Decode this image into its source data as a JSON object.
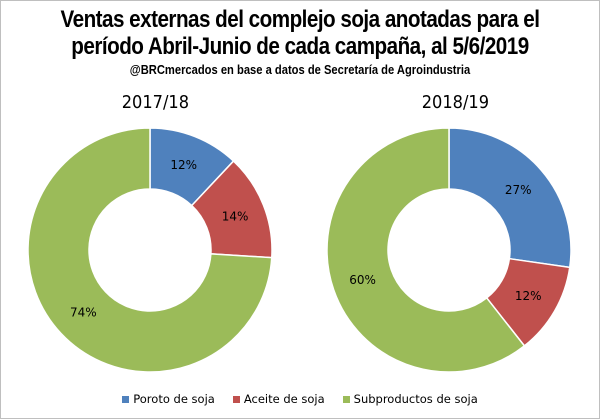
{
  "chart_data": [
    {
      "type": "pie",
      "subtype": "donut",
      "title": "2017/18",
      "categories": [
        "Poroto de soja",
        "Aceite de soja",
        "Subproductos de soja"
      ],
      "values": [
        12,
        14,
        74
      ],
      "labels": [
        "12%",
        "14%",
        "74%"
      ]
    },
    {
      "type": "pie",
      "subtype": "donut",
      "title": "2018/19",
      "categories": [
        "Poroto de soja",
        "Aceite de soja",
        "Subproductos de soja"
      ],
      "values": [
        27,
        12,
        60
      ],
      "labels": [
        "27%",
        "12%",
        "60%"
      ]
    }
  ],
  "header": {
    "title_line1": "Ventas externas del complejo soja anotadas para el",
    "title_line2": "período Abril-Junio de cada campaña, al 5/6/2019",
    "subtitle": "@BRCmercados en base a datos de Secretaría de Agroindustria"
  },
  "legend": [
    {
      "label": "Poroto de soja",
      "color": "#4f81bd"
    },
    {
      "label": "Aceite de soja",
      "color": "#c0504d"
    },
    {
      "label": "Subproductos de soja",
      "color": "#9bbb59"
    }
  ],
  "colors": [
    "#4f81bd",
    "#c0504d",
    "#9bbb59"
  ]
}
